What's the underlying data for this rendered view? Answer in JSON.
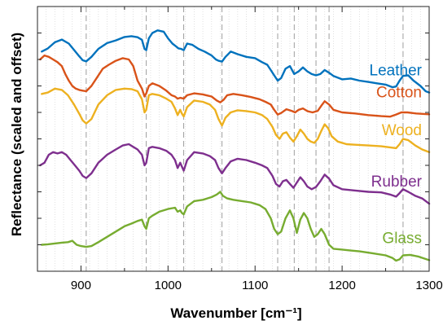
{
  "chart_data": {
    "type": "line",
    "title": "",
    "xlabel": "Wavenumber [cm⁻¹]",
    "ylabel": "Reflectance (scaled and offset)",
    "xlim": [
      850,
      1300
    ],
    "ylim": [
      0,
      1
    ],
    "y_ticks_labeled": false,
    "x_ticks": [
      900,
      1000,
      1100,
      1200,
      1300
    ],
    "x_tick_labels": [
      "900",
      "1000",
      "1100",
      "1200",
      "1300"
    ],
    "grid": "vertical minor dotted",
    "marker_lines": [
      906,
      975,
      1018,
      1062,
      1126,
      1145,
      1170,
      1185,
      1270
    ],
    "legend": "labels placed at right end of each series",
    "series": [
      {
        "name": "Leather",
        "color": "#0072BD",
        "x": [
          855,
          862,
          870,
          878,
          886,
          893,
          898,
          902,
          906,
          912,
          920,
          930,
          940,
          950,
          958,
          965,
          970,
          973,
          975,
          978,
          982,
          988,
          995,
          1000,
          1005,
          1009,
          1012,
          1015,
          1018,
          1022,
          1028,
          1035,
          1042,
          1050,
          1055,
          1058,
          1062,
          1066,
          1072,
          1080,
          1090,
          1100,
          1108,
          1114,
          1118,
          1122,
          1126,
          1130,
          1135,
          1140,
          1145,
          1150,
          1155,
          1160,
          1165,
          1170,
          1175,
          1180,
          1185,
          1190,
          1200,
          1210,
          1220,
          1230,
          1240,
          1250,
          1258,
          1262,
          1266,
          1270,
          1276,
          1282,
          1290,
          1296,
          1300
        ],
        "y": [
          0.83,
          0.842,
          0.865,
          0.875,
          0.86,
          0.832,
          0.812,
          0.797,
          0.793,
          0.81,
          0.84,
          0.862,
          0.872,
          0.885,
          0.888,
          0.884,
          0.874,
          0.84,
          0.835,
          0.88,
          0.9,
          0.91,
          0.905,
          0.88,
          0.86,
          0.85,
          0.842,
          0.84,
          0.835,
          0.86,
          0.855,
          0.84,
          0.83,
          0.815,
          0.8,
          0.795,
          0.792,
          0.81,
          0.83,
          0.82,
          0.81,
          0.805,
          0.79,
          0.78,
          0.76,
          0.74,
          0.72,
          0.73,
          0.765,
          0.775,
          0.745,
          0.755,
          0.77,
          0.755,
          0.745,
          0.74,
          0.745,
          0.76,
          0.75,
          0.738,
          0.725,
          0.728,
          0.72,
          0.715,
          0.71,
          0.705,
          0.695,
          0.698,
          0.72,
          0.738,
          0.74,
          0.72,
          0.7,
          0.68,
          0.675
        ]
      },
      {
        "name": "Cotton",
        "color": "#D95319",
        "x": [
          853,
          858,
          863,
          868,
          873,
          878,
          882,
          886,
          890,
          894,
          898,
          902,
          906,
          912,
          918,
          925,
          932,
          940,
          948,
          955,
          960,
          965,
          970,
          973,
          975,
          978,
          982,
          990,
          998,
          1004,
          1008,
          1011,
          1014,
          1018,
          1022,
          1030,
          1040,
          1050,
          1056,
          1060,
          1064,
          1068,
          1075,
          1085,
          1095,
          1105,
          1112,
          1118,
          1122,
          1126,
          1130,
          1136,
          1142,
          1146,
          1150,
          1155,
          1160,
          1166,
          1172,
          1176,
          1180,
          1185,
          1190,
          1200,
          1215,
          1230,
          1245,
          1255,
          1262,
          1268,
          1275,
          1285,
          1300
        ],
        "y": [
          0.8,
          0.815,
          0.81,
          0.8,
          0.79,
          0.775,
          0.745,
          0.72,
          0.7,
          0.69,
          0.685,
          0.682,
          0.68,
          0.7,
          0.73,
          0.765,
          0.78,
          0.795,
          0.805,
          0.8,
          0.775,
          0.72,
          0.69,
          0.66,
          0.672,
          0.7,
          0.71,
          0.7,
          0.682,
          0.665,
          0.66,
          0.652,
          0.655,
          0.652,
          0.665,
          0.672,
          0.668,
          0.66,
          0.645,
          0.638,
          0.648,
          0.665,
          0.67,
          0.665,
          0.658,
          0.65,
          0.64,
          0.63,
          0.61,
          0.592,
          0.598,
          0.612,
          0.606,
          0.6,
          0.61,
          0.615,
          0.605,
          0.6,
          0.606,
          0.625,
          0.642,
          0.63,
          0.61,
          0.6,
          0.596,
          0.59,
          0.586,
          0.584,
          0.592,
          0.6,
          0.6,
          0.596,
          0.593
        ]
      },
      {
        "name": "Wood",
        "color": "#EDB120",
        "x": [
          855,
          862,
          870,
          878,
          885,
          892,
          898,
          902,
          906,
          912,
          920,
          930,
          940,
          950,
          958,
          965,
          970,
          973,
          975,
          978,
          982,
          990,
          998,
          1004,
          1008,
          1011,
          1014,
          1016,
          1018,
          1022,
          1030,
          1040,
          1048,
          1054,
          1058,
          1062,
          1066,
          1072,
          1080,
          1090,
          1100,
          1108,
          1114,
          1120,
          1124,
          1128,
          1132,
          1136,
          1140,
          1144,
          1148,
          1152,
          1156,
          1160,
          1164,
          1168,
          1172,
          1176,
          1180,
          1184,
          1188,
          1195,
          1205,
          1215,
          1230,
          1245,
          1255,
          1262,
          1266,
          1270,
          1276,
          1284,
          1292,
          1300
        ],
        "y": [
          0.67,
          0.675,
          0.69,
          0.685,
          0.665,
          0.63,
          0.595,
          0.57,
          0.558,
          0.575,
          0.63,
          0.665,
          0.685,
          0.69,
          0.688,
          0.68,
          0.65,
          0.6,
          0.61,
          0.665,
          0.67,
          0.665,
          0.652,
          0.64,
          0.615,
          0.59,
          0.61,
          0.595,
          0.585,
          0.62,
          0.645,
          0.64,
          0.63,
          0.61,
          0.575,
          0.55,
          0.58,
          0.6,
          0.608,
          0.605,
          0.6,
          0.59,
          0.575,
          0.545,
          0.515,
          0.5,
          0.52,
          0.525,
          0.505,
          0.49,
          0.51,
          0.535,
          0.52,
          0.5,
          0.49,
          0.485,
          0.5,
          0.53,
          0.555,
          0.54,
          0.51,
          0.49,
          0.48,
          0.478,
          0.475,
          0.472,
          0.468,
          0.465,
          0.48,
          0.5,
          0.495,
          0.475,
          0.46,
          0.45
        ]
      },
      {
        "name": "Rubber",
        "color": "#7E2F8E",
        "x": [
          853,
          858,
          863,
          868,
          873,
          878,
          883,
          888,
          893,
          898,
          902,
          906,
          912,
          920,
          930,
          940,
          948,
          955,
          960,
          965,
          970,
          973,
          975,
          978,
          982,
          990,
          998,
          1004,
          1008,
          1011,
          1014,
          1016,
          1018,
          1022,
          1030,
          1040,
          1048,
          1054,
          1058,
          1062,
          1066,
          1072,
          1080,
          1090,
          1100,
          1108,
          1114,
          1120,
          1124,
          1128,
          1132,
          1136,
          1140,
          1144,
          1148,
          1152,
          1156,
          1160,
          1165,
          1170,
          1175,
          1180,
          1185,
          1190,
          1200,
          1215,
          1230,
          1245,
          1255,
          1262,
          1266,
          1270,
          1276,
          1284,
          1292,
          1300
        ],
        "y": [
          0.4,
          0.41,
          0.44,
          0.45,
          0.445,
          0.45,
          0.44,
          0.42,
          0.4,
          0.38,
          0.36,
          0.352,
          0.37,
          0.41,
          0.44,
          0.46,
          0.475,
          0.48,
          0.47,
          0.46,
          0.44,
          0.4,
          0.41,
          0.465,
          0.47,
          0.465,
          0.455,
          0.44,
          0.42,
          0.39,
          0.41,
          0.395,
          0.38,
          0.42,
          0.45,
          0.445,
          0.435,
          0.42,
          0.39,
          0.37,
          0.39,
          0.415,
          0.425,
          0.42,
          0.41,
          0.4,
          0.39,
          0.36,
          0.33,
          0.32,
          0.34,
          0.345,
          0.33,
          0.315,
          0.335,
          0.355,
          0.34,
          0.32,
          0.31,
          0.318,
          0.34,
          0.365,
          0.35,
          0.325,
          0.31,
          0.305,
          0.3,
          0.298,
          0.29,
          0.282,
          0.295,
          0.31,
          0.3,
          0.285,
          0.275,
          0.255
        ]
      },
      {
        "name": "Glass",
        "color": "#77AC30",
        "x": [
          855,
          862,
          870,
          878,
          885,
          890,
          895,
          900,
          906,
          912,
          920,
          930,
          940,
          950,
          958,
          965,
          970,
          973,
          975,
          978,
          982,
          990,
          1000,
          1008,
          1011,
          1014,
          1016,
          1018,
          1022,
          1030,
          1040,
          1050,
          1056,
          1060,
          1063,
          1068,
          1075,
          1085,
          1095,
          1105,
          1112,
          1118,
          1122,
          1126,
          1130,
          1135,
          1140,
          1144,
          1148,
          1152,
          1156,
          1160,
          1164,
          1168,
          1172,
          1176,
          1180,
          1185,
          1190,
          1200,
          1210,
          1220,
          1235,
          1250,
          1258,
          1262,
          1266,
          1270,
          1278,
          1288,
          1300
        ],
        "y": [
          0.1,
          0.102,
          0.105,
          0.108,
          0.11,
          0.115,
          0.1,
          0.095,
          0.092,
          0.095,
          0.11,
          0.13,
          0.15,
          0.17,
          0.18,
          0.19,
          0.195,
          0.17,
          0.16,
          0.2,
          0.21,
          0.225,
          0.235,
          0.24,
          0.225,
          0.23,
          0.22,
          0.215,
          0.245,
          0.265,
          0.27,
          0.28,
          0.29,
          0.3,
          0.285,
          0.275,
          0.27,
          0.265,
          0.26,
          0.25,
          0.235,
          0.2,
          0.16,
          0.14,
          0.15,
          0.2,
          0.23,
          0.2,
          0.145,
          0.195,
          0.22,
          0.2,
          0.16,
          0.13,
          0.14,
          0.16,
          0.14,
          0.1,
          0.085,
          0.082,
          0.078,
          0.075,
          0.068,
          0.06,
          0.05,
          0.04,
          0.045,
          0.06,
          0.062,
          0.055,
          0.042
        ]
      }
    ]
  }
}
